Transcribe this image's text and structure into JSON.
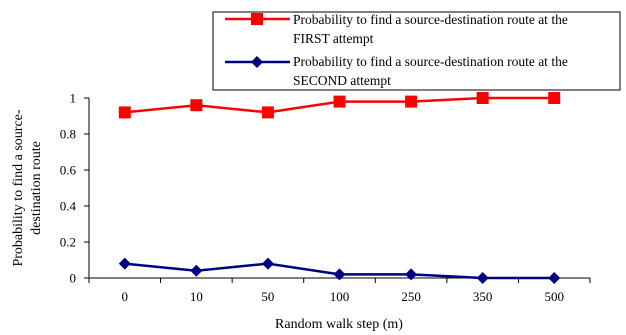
{
  "chart_data": {
    "type": "line",
    "categories": [
      "0",
      "10",
      "50",
      "100",
      "250",
      "350",
      "500"
    ],
    "series": [
      {
        "name_lines": [
          "Probability to find a source-destination route at the",
          "FIRST attempt"
        ],
        "values": [
          0.92,
          0.96,
          0.92,
          0.98,
          0.98,
          1.0,
          1.0
        ],
        "color": "#ff0000",
        "marker": "square"
      },
      {
        "name_lines": [
          "Probability to find a source-destination route at the",
          "SECOND attempt"
        ],
        "values": [
          0.08,
          0.04,
          0.08,
          0.02,
          0.02,
          0.0,
          0.0
        ],
        "color": "#000080",
        "marker": "diamond"
      }
    ],
    "y_ticks": [
      "0",
      "0.2",
      "0.4",
      "0.6",
      "0.8",
      "1"
    ],
    "xlabel": "Random walk step (m)",
    "ylabel_lines": [
      "Probability to find a source-",
      "destination route"
    ],
    "ylim": [
      0,
      1
    ],
    "grid": false,
    "legend_position": "top-right"
  }
}
